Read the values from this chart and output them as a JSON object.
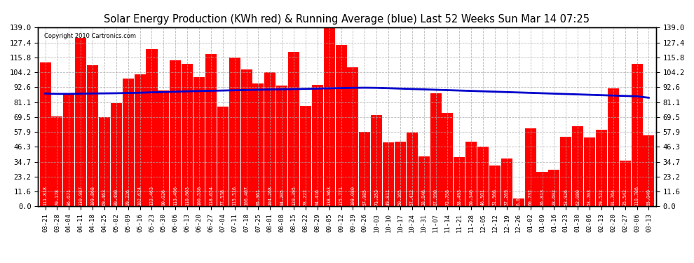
{
  "title": "Solar Energy Production (KWh red) & Running Average (blue) Last 52 Weeks Sun Mar 14 07:25",
  "copyright": "Copyright 2010 Cartronics.com",
  "bar_color": "#ff0000",
  "avg_color": "#0000cc",
  "background_color": "#ffffff",
  "grid_color": "#aaaaaa",
  "ylim": [
    0,
    139.0
  ],
  "yticks": [
    0.0,
    11.6,
    23.2,
    34.7,
    46.3,
    57.9,
    69.5,
    81.1,
    92.6,
    104.2,
    115.8,
    127.4,
    139.0
  ],
  "dates": [
    "03-21",
    "03-28",
    "04-04",
    "04-11",
    "04-18",
    "04-25",
    "05-02",
    "05-09",
    "05-16",
    "05-23",
    "05-30",
    "06-06",
    "06-13",
    "06-20",
    "06-27",
    "07-04",
    "07-11",
    "07-18",
    "07-25",
    "08-01",
    "08-08",
    "08-15",
    "08-22",
    "08-29",
    "09-05",
    "09-12",
    "09-19",
    "09-26",
    "10-03",
    "10-10",
    "10-17",
    "10-24",
    "10-31",
    "11-07",
    "11-14",
    "11-21",
    "11-28",
    "12-05",
    "12-12",
    "12-19",
    "12-26",
    "01-02",
    "01-09",
    "01-16",
    "01-23",
    "01-30",
    "02-06",
    "02-13",
    "02-20",
    "02-27",
    "03-06",
    "03-13"
  ],
  "values": [
    111.818,
    70.178,
    86.671,
    130.987,
    109.868,
    69.463,
    80.49,
    99.226,
    102.624,
    122.463,
    90.026,
    113.496,
    110.903,
    100.53,
    118.654,
    77.538,
    115.516,
    106.407,
    95.361,
    104.268,
    94.205,
    120.395,
    78.222,
    94.416,
    138.963,
    125.771,
    108.08,
    57.985,
    71.253,
    49.811,
    50.165,
    57.412,
    38.846,
    87.99,
    72.758,
    38.493,
    50.34,
    46.501,
    31.966,
    37.269,
    6.079,
    60.732,
    26.813,
    28.602,
    53.926,
    62.08,
    53.703,
    59.522,
    91.764,
    35.542,
    110.706,
    55.049
  ],
  "running_avg": [
    87.8,
    87.5,
    87.5,
    87.7,
    87.8,
    87.9,
    88.0,
    88.2,
    88.4,
    88.7,
    88.9,
    89.2,
    89.5,
    89.7,
    89.9,
    90.1,
    90.3,
    90.5,
    90.7,
    90.9,
    91.0,
    91.2,
    91.4,
    91.6,
    91.8,
    92.0,
    92.2,
    92.3,
    92.2,
    91.9,
    91.6,
    91.3,
    91.0,
    90.7,
    90.4,
    90.1,
    89.8,
    89.5,
    89.2,
    88.9,
    88.6,
    88.3,
    88.0,
    87.7,
    87.4,
    87.1,
    86.8,
    86.5,
    86.2,
    85.9,
    85.6,
    84.5
  ]
}
